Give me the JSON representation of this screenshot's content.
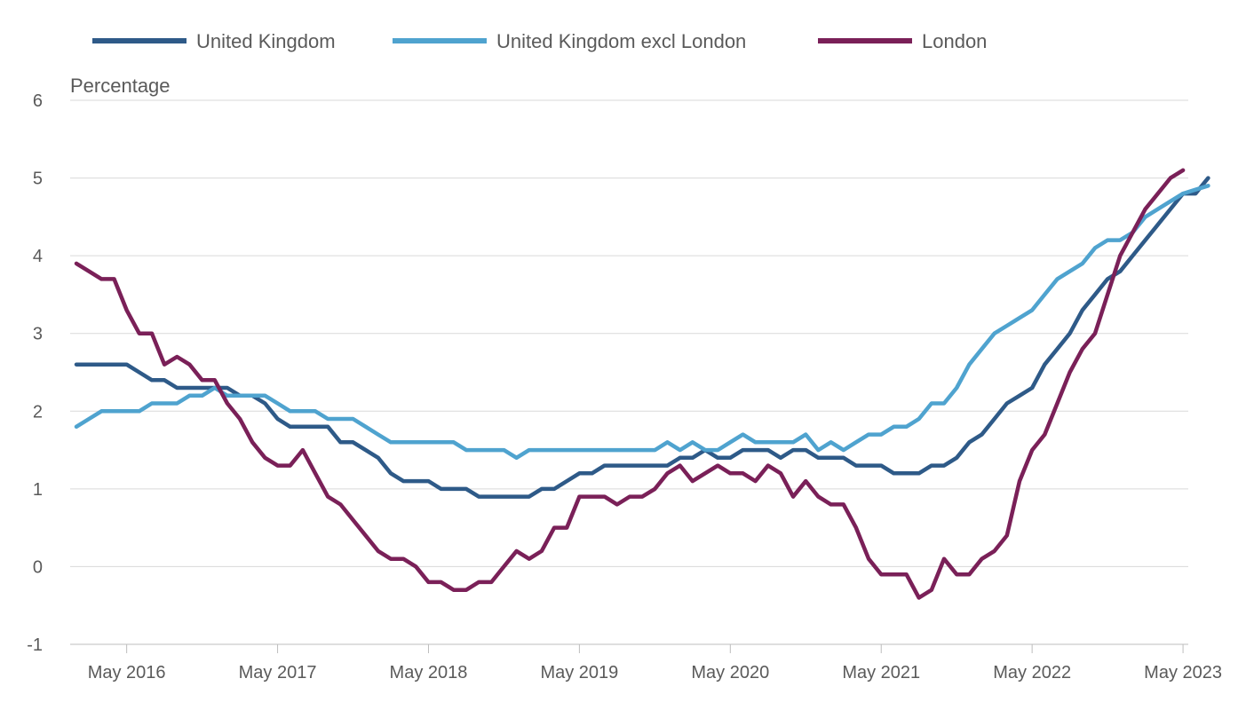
{
  "chart_data": {
    "type": "line",
    "title": "",
    "xlabel": "",
    "ylabel": "Percentage",
    "ylim": [
      -1,
      6
    ],
    "yticks": [
      -1,
      0,
      1,
      2,
      3,
      4,
      5,
      6
    ],
    "grid": true,
    "legend_position": "top",
    "x_start": "Jan 2016",
    "x_ticks": [
      "May 2016",
      "May 2017",
      "May 2018",
      "May 2019",
      "May 2020",
      "May 2021",
      "May 2022",
      "May 2023"
    ],
    "x_tick_indices": [
      4,
      16,
      28,
      40,
      52,
      64,
      76,
      88
    ],
    "series": [
      {
        "name": "United Kingdom",
        "color": "#2e5a88",
        "values": [
          2.6,
          2.6,
          2.6,
          2.6,
          2.6,
          2.5,
          2.4,
          2.4,
          2.3,
          2.3,
          2.3,
          2.3,
          2.3,
          2.2,
          2.2,
          2.1,
          1.9,
          1.8,
          1.8,
          1.8,
          1.8,
          1.6,
          1.6,
          1.5,
          1.4,
          1.2,
          1.1,
          1.1,
          1.1,
          1.0,
          1.0,
          1.0,
          0.9,
          0.9,
          0.9,
          0.9,
          0.9,
          1.0,
          1.0,
          1.1,
          1.2,
          1.2,
          1.3,
          1.3,
          1.3,
          1.3,
          1.3,
          1.3,
          1.4,
          1.4,
          1.5,
          1.4,
          1.4,
          1.5,
          1.5,
          1.5,
          1.4,
          1.5,
          1.5,
          1.4,
          1.4,
          1.4,
          1.3,
          1.3,
          1.3,
          1.2,
          1.2,
          1.2,
          1.3,
          1.3,
          1.4,
          1.6,
          1.7,
          1.9,
          2.1,
          2.2,
          2.3,
          2.6,
          2.8,
          3.0,
          3.3,
          3.5,
          3.7,
          3.8,
          4.0,
          4.2,
          4.4,
          4.6,
          4.8,
          4.8,
          5.0
        ]
      },
      {
        "name": "United Kingdom excl London",
        "color": "#4fa3cf",
        "values": [
          1.8,
          1.9,
          2.0,
          2.0,
          2.0,
          2.0,
          2.1,
          2.1,
          2.1,
          2.2,
          2.2,
          2.3,
          2.2,
          2.2,
          2.2,
          2.2,
          2.1,
          2.0,
          2.0,
          2.0,
          1.9,
          1.9,
          1.9,
          1.8,
          1.7,
          1.6,
          1.6,
          1.6,
          1.6,
          1.6,
          1.6,
          1.5,
          1.5,
          1.5,
          1.5,
          1.4,
          1.5,
          1.5,
          1.5,
          1.5,
          1.5,
          1.5,
          1.5,
          1.5,
          1.5,
          1.5,
          1.5,
          1.6,
          1.5,
          1.6,
          1.5,
          1.5,
          1.6,
          1.7,
          1.6,
          1.6,
          1.6,
          1.6,
          1.7,
          1.5,
          1.6,
          1.5,
          1.6,
          1.7,
          1.7,
          1.8,
          1.8,
          1.9,
          2.1,
          2.1,
          2.3,
          2.6,
          2.8,
          3.0,
          3.1,
          3.2,
          3.3,
          3.5,
          3.7,
          3.8,
          3.9,
          4.1,
          4.2,
          4.2,
          4.3,
          4.5,
          4.6,
          4.7,
          4.8,
          4.85,
          4.9
        ]
      },
      {
        "name": "London",
        "color": "#7a2058",
        "values": [
          3.9,
          3.8,
          3.7,
          3.7,
          3.3,
          3.0,
          3.0,
          2.6,
          2.7,
          2.6,
          2.4,
          2.4,
          2.1,
          1.9,
          1.6,
          1.4,
          1.3,
          1.3,
          1.5,
          1.2,
          0.9,
          0.8,
          0.6,
          0.4,
          0.2,
          0.1,
          0.1,
          0.0,
          -0.2,
          -0.2,
          -0.3,
          -0.3,
          -0.2,
          -0.2,
          0.0,
          0.2,
          0.1,
          0.2,
          0.5,
          0.5,
          0.9,
          0.9,
          0.9,
          0.8,
          0.9,
          0.9,
          1.0,
          1.2,
          1.3,
          1.1,
          1.2,
          1.3,
          1.2,
          1.2,
          1.1,
          1.3,
          1.2,
          0.9,
          1.1,
          0.9,
          0.8,
          0.8,
          0.5,
          0.1,
          -0.1,
          -0.1,
          -0.1,
          -0.4,
          -0.3,
          0.1,
          -0.1,
          -0.1,
          0.1,
          0.2,
          0.4,
          1.1,
          1.5,
          1.7,
          2.1,
          2.5,
          2.8,
          3.0,
          3.5,
          4.0,
          4.3,
          4.6,
          4.8,
          5.0,
          5.1
        ]
      }
    ]
  }
}
